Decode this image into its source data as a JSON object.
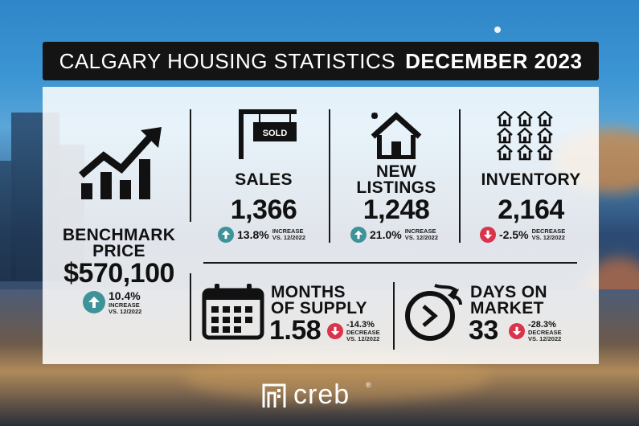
{
  "title": {
    "part1": "CALGARY HOUSING STATISTICS",
    "part2": "DECEMBER 2023"
  },
  "benchmark": {
    "title_line1": "BENCHMARK",
    "title_line2": "PRICE",
    "value": "$570,100",
    "pct": "10.4%",
    "note1": "INCREASE",
    "note2": "VS. 12/2022",
    "direction": "up"
  },
  "sales": {
    "sign": "SOLD",
    "title": "SALES",
    "value": "1,366",
    "pct": "13.8%",
    "note1": "INCREASE",
    "note2": "VS. 12/2022",
    "direction": "up"
  },
  "new_listings": {
    "title_line1": "NEW",
    "title_line2": "LISTINGS",
    "value": "1,248",
    "pct": "21.0%",
    "note1": "INCREASE",
    "note2": "VS. 12/2022",
    "direction": "up"
  },
  "inventory": {
    "title": "INVENTORY",
    "value": "2,164",
    "pct": "-2.5%",
    "note1": "DECREASE",
    "note2": "VS. 12/2022",
    "direction": "down"
  },
  "months_supply": {
    "title_line1": "MONTHS",
    "title_line2": "OF SUPPLY",
    "value": "1.58",
    "pct": "-14.3%",
    "note1": "DECREASE",
    "note2": "VS. 12/2022",
    "direction": "down"
  },
  "days_on_market": {
    "title_line1": "DAYS ON",
    "title_line2": "MARKET",
    "value": "33",
    "pct": "-28.3%",
    "note1": "DECREASE",
    "note2": "VS. 12/2022",
    "direction": "down"
  },
  "footer": {
    "brand": "creb",
    "reg": "®"
  },
  "colors": {
    "up": "#3d9399",
    "down": "#d9344b",
    "title_bg": "#141414"
  },
  "icons": [
    "bar-chart-arrow-icon",
    "sold-sign-icon",
    "new-house-icon",
    "houses-grid-icon",
    "calendar-icon",
    "clock-speed-icon",
    "arrow-up-icon",
    "arrow-down-icon",
    "creb-logo-icon"
  ]
}
